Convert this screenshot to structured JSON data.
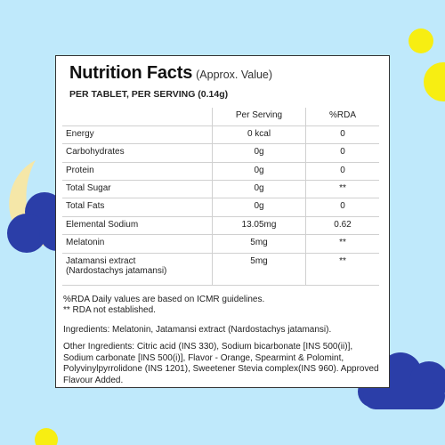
{
  "label": {
    "title": "Nutrition Facts",
    "title_note": "(Approx. Value)",
    "serving_line": "PER TABLET, PER SERVING (0.14g)",
    "columns": [
      "",
      "Per Serving",
      "%RDA"
    ],
    "rows": [
      {
        "name": "Energy",
        "sub": "",
        "per_serving": "0 kcal",
        "rda": "0"
      },
      {
        "name": "Carbohydrates",
        "sub": "",
        "per_serving": "0g",
        "rda": "0"
      },
      {
        "name": "Protein",
        "sub": "",
        "per_serving": "0g",
        "rda": "0"
      },
      {
        "name": "Total Sugar",
        "sub": "",
        "per_serving": "0g",
        "rda": "**"
      },
      {
        "name": "Total Fats",
        "sub": "",
        "per_serving": "0g",
        "rda": "0"
      },
      {
        "name": "Elemental Sodium",
        "sub": "",
        "per_serving": "13.05mg",
        "rda": "0.62"
      },
      {
        "name": "Melatonin",
        "sub": "",
        "per_serving": "5mg",
        "rda": "**"
      },
      {
        "name": "Jatamansi extract",
        "sub": "(Nardostachys jatamansi)",
        "per_serving": "5mg",
        "rda": "**"
      }
    ],
    "notes": [
      "%RDA Daily values are based on ICMR guidelines.",
      "** RDA not established."
    ],
    "ingredients": "Ingredients: Melatonin, Jatamansi extract (Nardostachys jatamansi).",
    "other_ingredients": "Other Ingredients:  Citric acid (INS 330), Sodium bicarbonate [INS 500(ii)], Sodium carbonate [INS 500(i)], Flavor - Orange, Spearmint & Polomint, Polyvinylpyrrolidone (INS 1201), Sweetener Stevia complex(INS 960). Approved Flavour Added."
  },
  "colors": {
    "background": "#bfe9fb",
    "moon": "#f5e7a8",
    "cloud": "#2b3ea8",
    "dot": "#f7ee12"
  }
}
